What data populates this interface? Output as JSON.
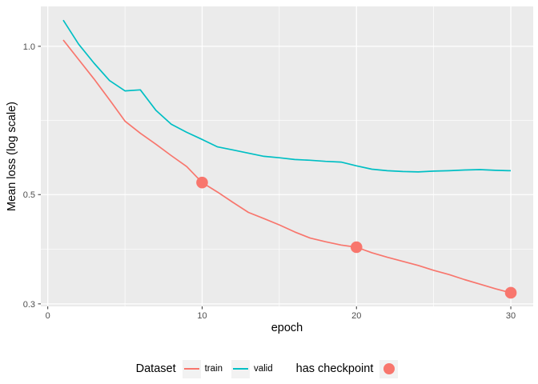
{
  "figure": {
    "background": "#FFFFFF",
    "panel_background": "#EBEBEB",
    "grid_color": "#FFFFFF",
    "tick_mark_color": "#333333",
    "axis_text_color": "#4D4D4D",
    "axis_title_color": "#000000"
  },
  "colors": {
    "train": "#F8766D",
    "valid": "#00BFC4",
    "checkpoint": "#F8766D"
  },
  "axes": {
    "x": {
      "title": "epoch",
      "ticks": [
        0,
        10,
        20,
        30
      ],
      "tick_labels": [
        "0",
        "10",
        "20",
        "30"
      ],
      "minor": [
        5,
        15,
        25
      ]
    },
    "y": {
      "title": "Mean loss (log scale)",
      "scale": "log10",
      "ticks": [
        0.3,
        0.5,
        1.0
      ],
      "tick_labels": [
        "0.3",
        "0.5",
        "1.0"
      ],
      "minor": [
        0.3873,
        0.7071
      ]
    }
  },
  "legend": {
    "dataset_title": "Dataset",
    "entries": [
      {
        "label": "train",
        "color": "#F8766D"
      },
      {
        "label": "valid",
        "color": "#00BFC4"
      }
    ],
    "checkpoint_title": "has checkpoint",
    "key_background": "#F2F2F2"
  },
  "chart_data": {
    "type": "line",
    "title": "",
    "xlabel": "epoch",
    "ylabel": "Mean loss (log scale)",
    "grid": true,
    "legend_position": "bottom",
    "x_range": [
      -0.45,
      31.45
    ],
    "y_log10_range": [
      -0.528,
      0.081
    ],
    "x": [
      1,
      2,
      3,
      4,
      5,
      6,
      7,
      8,
      9,
      10,
      11,
      12,
      13,
      14,
      15,
      16,
      17,
      18,
      19,
      20,
      21,
      22,
      23,
      24,
      25,
      26,
      27,
      28,
      29,
      30
    ],
    "series": [
      {
        "name": "train",
        "values": [
          1.03,
          0.94,
          0.858,
          0.779,
          0.705,
          0.666,
          0.633,
          0.6,
          0.57,
          0.529,
          0.506,
          0.482,
          0.46,
          0.447,
          0.434,
          0.42,
          0.408,
          0.401,
          0.395,
          0.391,
          0.381,
          0.373,
          0.366,
          0.359,
          0.351,
          0.344,
          0.336,
          0.329,
          0.322,
          0.316
        ]
      },
      {
        "name": "valid",
        "values": [
          1.13,
          1.01,
          0.924,
          0.852,
          0.812,
          0.816,
          0.742,
          0.695,
          0.669,
          0.647,
          0.625,
          0.616,
          0.607,
          0.598,
          0.594,
          0.589,
          0.587,
          0.584,
          0.582,
          0.572,
          0.563,
          0.559,
          0.557,
          0.556,
          0.558,
          0.559,
          0.561,
          0.562,
          0.56,
          0.559
        ]
      }
    ],
    "checkpoints": {
      "series": "train",
      "x": [
        10,
        20,
        30
      ],
      "y": [
        0.529,
        0.391,
        0.316
      ]
    }
  }
}
